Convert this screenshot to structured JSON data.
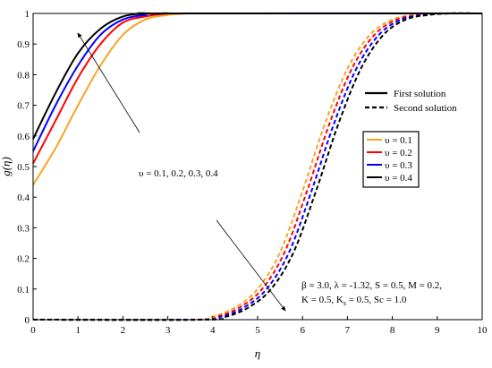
{
  "chart_data": {
    "type": "line",
    "xlabel": "η",
    "ylabel": "g(η)",
    "xlim": [
      0,
      10
    ],
    "ylim": [
      0,
      1
    ],
    "x_ticks": [
      "0",
      "1",
      "2",
      "3",
      "4",
      "5",
      "6",
      "7",
      "8",
      "9",
      "10"
    ],
    "y_ticks": [
      "0",
      "0.1",
      "0.2",
      "0.3",
      "0.4",
      "0.5",
      "0.6",
      "0.7",
      "0.8",
      "0.9",
      "1"
    ],
    "grid": false,
    "solution_legend": [
      {
        "label": "First solution",
        "style": "solid"
      },
      {
        "label": "Second solution",
        "style": "dashed"
      }
    ],
    "series": [
      {
        "name": "υ = 0.1",
        "color": "#f5a623",
        "first": {
          "x": [
            0,
            0.5,
            1,
            1.5,
            2,
            2.5,
            3,
            3.5,
            4,
            10
          ],
          "y": [
            0.44,
            0.56,
            0.7,
            0.83,
            0.93,
            0.98,
            0.995,
            1.0,
            1.0,
            1.0
          ]
        },
        "second": {
          "x": [
            0,
            3.5,
            4,
            4.5,
            5,
            5.5,
            6,
            6.5,
            7,
            7.5,
            8,
            8.5,
            9,
            10
          ],
          "y": [
            0,
            0,
            0.01,
            0.04,
            0.1,
            0.22,
            0.42,
            0.64,
            0.82,
            0.93,
            0.98,
            0.995,
            1.0,
            1.0
          ]
        }
      },
      {
        "name": "υ = 0.2",
        "color": "#ff0000",
        "first": {
          "x": [
            0,
            0.5,
            1,
            1.5,
            2,
            2.5,
            3,
            3.5,
            10
          ],
          "y": [
            0.51,
            0.65,
            0.79,
            0.9,
            0.97,
            0.99,
            1.0,
            1.0,
            1.0
          ]
        },
        "second": {
          "x": [
            0,
            3.6,
            4.1,
            4.6,
            5.1,
            5.6,
            6.1,
            6.6,
            7.1,
            7.6,
            8.1,
            8.6,
            9.1,
            10
          ],
          "y": [
            0,
            0,
            0.01,
            0.04,
            0.1,
            0.22,
            0.42,
            0.64,
            0.82,
            0.93,
            0.98,
            0.995,
            1.0,
            1.0
          ]
        }
      },
      {
        "name": "υ = 0.3",
        "color": "#0000ff",
        "first": {
          "x": [
            0,
            0.5,
            1,
            1.5,
            2,
            2.5,
            3,
            10
          ],
          "y": [
            0.55,
            0.7,
            0.83,
            0.93,
            0.98,
            0.995,
            1.0,
            1.0
          ]
        },
        "second": {
          "x": [
            0,
            3.7,
            4.2,
            4.7,
            5.2,
            5.7,
            6.2,
            6.7,
            7.2,
            7.7,
            8.2,
            8.7,
            9.2,
            10
          ],
          "y": [
            0,
            0,
            0.01,
            0.04,
            0.1,
            0.22,
            0.42,
            0.64,
            0.82,
            0.93,
            0.98,
            0.995,
            1.0,
            1.0
          ]
        }
      },
      {
        "name": "υ = 0.4",
        "color": "#000000",
        "first": {
          "x": [
            0,
            0.5,
            1,
            1.5,
            2,
            2.5,
            3,
            10
          ],
          "y": [
            0.59,
            0.74,
            0.87,
            0.95,
            0.99,
            1.0,
            1.0,
            1.0
          ]
        },
        "second": {
          "x": [
            0,
            3.8,
            4.3,
            4.8,
            5.3,
            5.8,
            6.3,
            6.8,
            7.3,
            7.8,
            8.3,
            8.8,
            9.3,
            10
          ],
          "y": [
            0,
            0,
            0.01,
            0.04,
            0.1,
            0.22,
            0.42,
            0.64,
            0.82,
            0.93,
            0.98,
            0.995,
            1.0,
            1.0
          ]
        }
      }
    ],
    "annotations": [
      {
        "text": "υ = 0.1, 0.2, 0.3, 0.4"
      },
      {
        "text_line1": "β = 3.0, λ = -1.32, S = 0.5, M = 0.2,",
        "text_line2_a": "K = 0.5, K",
        "text_line2_sub": "s",
        "text_line2_b": " = 0.5, Sc = 1.0"
      }
    ]
  }
}
